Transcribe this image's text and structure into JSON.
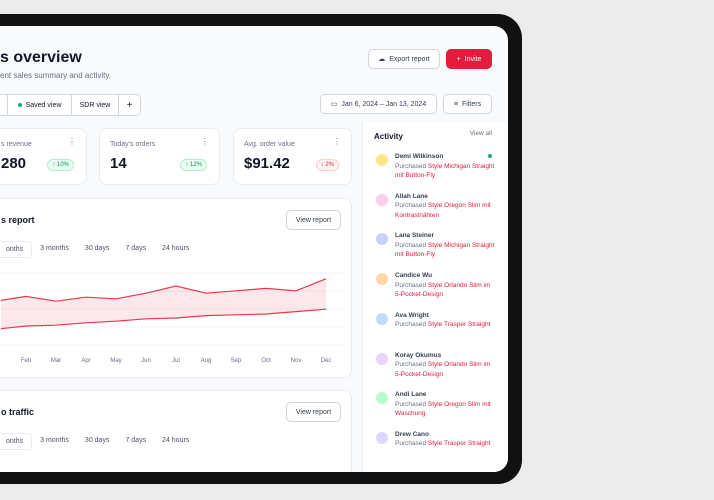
{
  "header": {
    "title": "s overview",
    "subtitle": "ent sales summary and activity.",
    "export_button": "Export report",
    "invite_button": "Invite"
  },
  "views": {
    "tabs": [
      "Saved view",
      "SDR view"
    ]
  },
  "filters": {
    "date_range": "Jan 6, 2024 – Jan 13, 2024",
    "filters": "Filters"
  },
  "stats": [
    {
      "label": "s revenue",
      "value": "280",
      "change": "10%"
    },
    {
      "label": "Today's orders",
      "value": "14",
      "change": "12%"
    },
    {
      "label": "Avg. order value",
      "value": "$91.42",
      "change": "2%"
    }
  ],
  "sales_report": {
    "title": "s report",
    "button": "View report",
    "ranges": [
      "onths",
      "3 months",
      "30 days",
      "7 days",
      "24 hours"
    ],
    "chart_data": {
      "type": "line",
      "categories": [
        null,
        "Feb",
        "Mar",
        "Apr",
        "May",
        "Jun",
        "Jul",
        "Aug",
        "Sep",
        "Oct",
        "Nov",
        "Dec"
      ],
      "ylim": [
        0,
        100
      ],
      "series": [
        {
          "color": "#e8384f",
          "values": [
            56,
            62,
            56,
            61,
            59,
            66,
            75,
            66,
            69,
            72,
            69,
            84
          ]
        },
        {
          "color": "#e8384f",
          "values": [
            21,
            25,
            26,
            29,
            31,
            34,
            35,
            38,
            39,
            40,
            43,
            46
          ]
        }
      ]
    }
  },
  "traffic": {
    "title": "o traffic",
    "button": "View report",
    "ranges": [
      "onths",
      "3 months",
      "30 days",
      "7 days",
      "24 hours"
    ]
  },
  "activity": {
    "title": "Activity",
    "view_all": "View all",
    "items": [
      {
        "name": "Demi Wilkinson",
        "action": "Purchased",
        "product": "Style Michigan Straight mit Button-Fly"
      },
      {
        "name": "Allah Lane",
        "action": "Purchased",
        "product": "Style Oregon Slim mit Kontrastnähten"
      },
      {
        "name": "Lana Steiner",
        "action": "Purchased",
        "product": "Style Michigan Straight mit Button-Fly"
      },
      {
        "name": "Candice Wu",
        "action": "Purchased",
        "product": "Style Orlando Slim im 5-Pocket-Design"
      },
      {
        "name": "Ava Wright",
        "action": "Purchased",
        "product": "Style Trasper Straight"
      },
      {
        "name": "Koray Okumus",
        "action": "Purchased",
        "product": "Style Orlando Slim im 5-Pocket-Design"
      },
      {
        "name": "Andi Lane",
        "action": "Purchased",
        "product": "Style Oregon Slim mit Waschung"
      },
      {
        "name": "Drew Cano",
        "action": "Purchased",
        "product": "Style Trasper Straight"
      }
    ]
  }
}
